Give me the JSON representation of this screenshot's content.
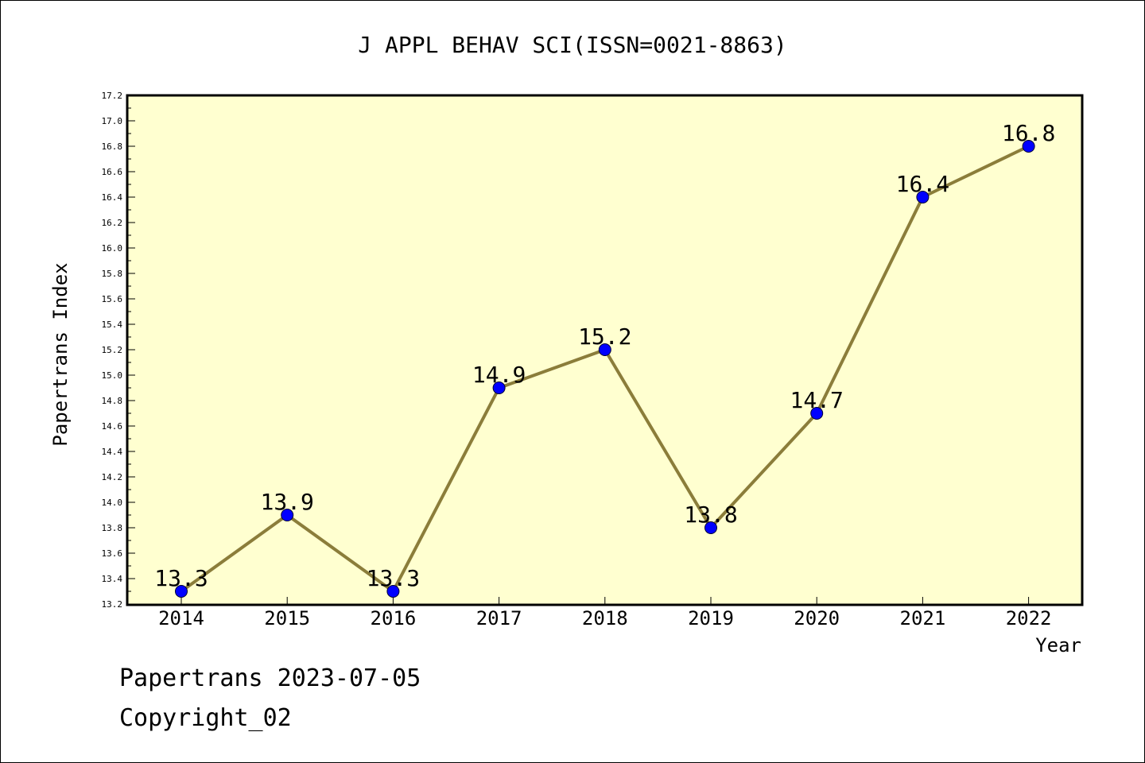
{
  "chart_data": {
    "type": "line",
    "title": "J APPL BEHAV SCI(ISSN=0021-8863)",
    "xlabel": "Year",
    "ylabel": "Papertrans Index",
    "categories": [
      "2014",
      "2015",
      "2016",
      "2017",
      "2018",
      "2019",
      "2020",
      "2021",
      "2022"
    ],
    "values": [
      13.3,
      13.9,
      13.3,
      14.9,
      15.2,
      13.8,
      14.7,
      16.4,
      16.8
    ],
    "data_labels": [
      "13.3",
      "13.9",
      "13.3",
      "14.9",
      "15.2",
      "13.8",
      "14.7",
      "16.4",
      "16.8"
    ],
    "ylim": [
      13.2,
      17.2
    ],
    "yticks": [
      "13.2",
      "13.4",
      "13.6",
      "13.8",
      "14.0",
      "14.2",
      "14.4",
      "14.6",
      "14.8",
      "15.0",
      "15.2",
      "15.4",
      "15.6",
      "15.8",
      "16.0",
      "16.2",
      "16.4",
      "16.6",
      "16.8",
      "17.0",
      "17.2"
    ],
    "grid": false,
    "legend": "none",
    "colors": {
      "plot_background": "#ffffd0",
      "line": "#8b7d3a",
      "marker": "#0000ff"
    }
  },
  "footer": {
    "line1": "Papertrans 2023-07-05",
    "line2": "Copyright_02"
  }
}
